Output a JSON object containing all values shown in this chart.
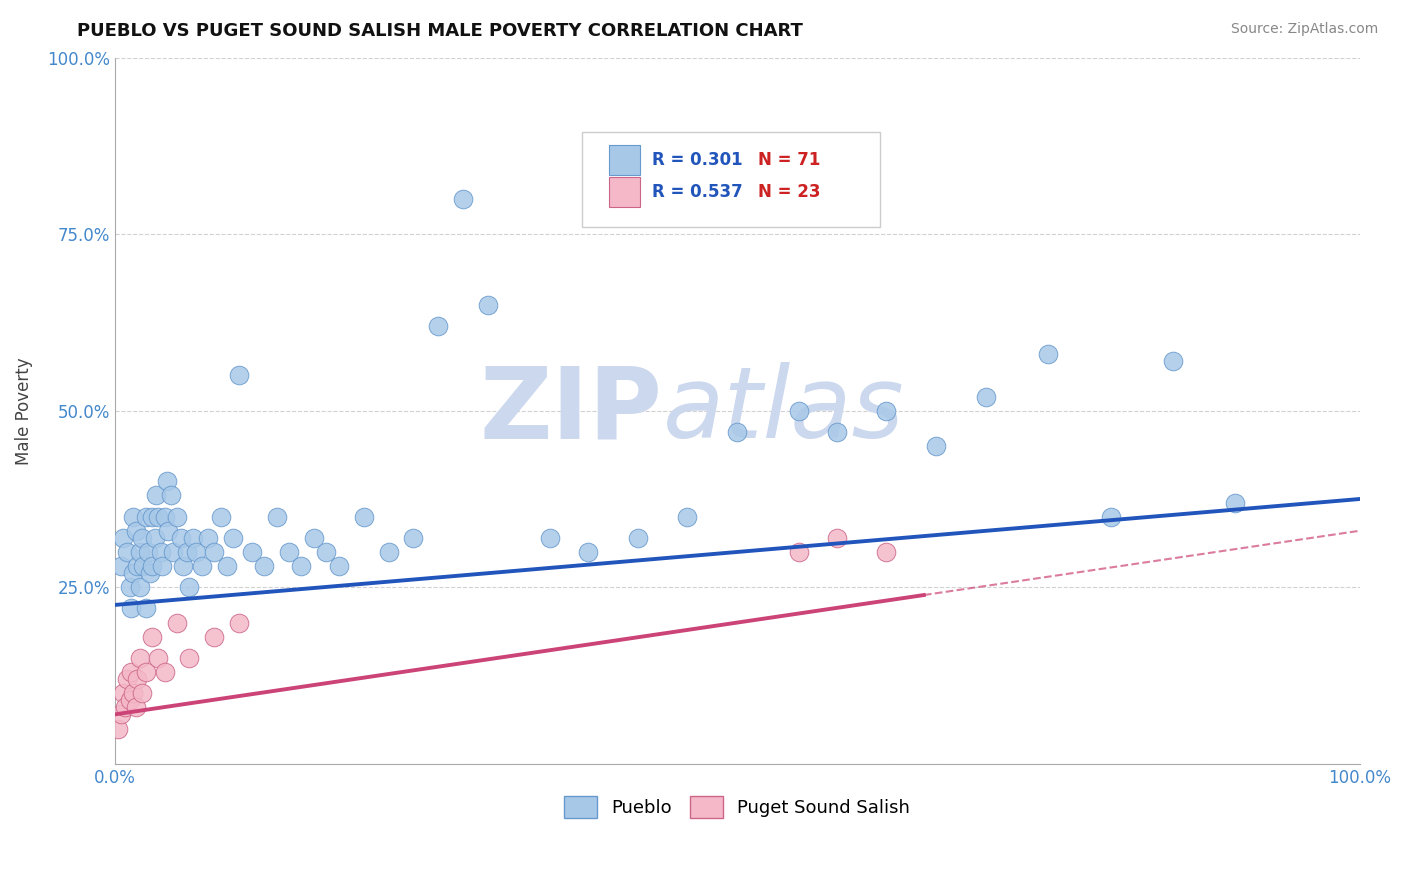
{
  "title": "PUEBLO VS PUGET SOUND SALISH MALE POVERTY CORRELATION CHART",
  "source": "Source: ZipAtlas.com",
  "ylabel": "Male Poverty",
  "xlim": [
    0.0,
    1.0
  ],
  "ylim": [
    0.0,
    1.0
  ],
  "background_color": "#ffffff",
  "pueblo_color": "#a8c8e8",
  "pueblo_edge_color": "#6699cc",
  "puget_color": "#f4b8c8",
  "puget_edge_color": "#cc6688",
  "pueblo_line_color": "#2255bb",
  "puget_line_color": "#cc4477",
  "legend_R_color": "#2255bb",
  "legend_N_color": "#cc2222",
  "watermark_color": "#ccd8ee",
  "pueblo_R": 0.301,
  "pueblo_N": 71,
  "puget_R": 0.537,
  "puget_N": 23,
  "pueblo_x": [
    0.005,
    0.007,
    0.01,
    0.012,
    0.013,
    0.015,
    0.015,
    0.017,
    0.018,
    0.02,
    0.02,
    0.022,
    0.023,
    0.025,
    0.025,
    0.027,
    0.028,
    0.03,
    0.03,
    0.032,
    0.033,
    0.035,
    0.037,
    0.038,
    0.04,
    0.042,
    0.043,
    0.045,
    0.047,
    0.05,
    0.053,
    0.055,
    0.058,
    0.06,
    0.063,
    0.065,
    0.07,
    0.075,
    0.08,
    0.085,
    0.09,
    0.095,
    0.1,
    0.11,
    0.12,
    0.13,
    0.14,
    0.15,
    0.16,
    0.17,
    0.18,
    0.2,
    0.22,
    0.24,
    0.26,
    0.28,
    0.3,
    0.35,
    0.38,
    0.42,
    0.46,
    0.5,
    0.55,
    0.58,
    0.62,
    0.66,
    0.7,
    0.75,
    0.8,
    0.85,
    0.9
  ],
  "pueblo_y": [
    0.28,
    0.32,
    0.3,
    0.25,
    0.22,
    0.35,
    0.27,
    0.33,
    0.28,
    0.3,
    0.25,
    0.32,
    0.28,
    0.35,
    0.22,
    0.3,
    0.27,
    0.35,
    0.28,
    0.32,
    0.38,
    0.35,
    0.3,
    0.28,
    0.35,
    0.4,
    0.33,
    0.38,
    0.3,
    0.35,
    0.32,
    0.28,
    0.3,
    0.25,
    0.32,
    0.3,
    0.28,
    0.32,
    0.3,
    0.35,
    0.28,
    0.32,
    0.55,
    0.3,
    0.28,
    0.35,
    0.3,
    0.28,
    0.32,
    0.3,
    0.28,
    0.35,
    0.3,
    0.32,
    0.62,
    0.8,
    0.65,
    0.32,
    0.3,
    0.32,
    0.35,
    0.47,
    0.5,
    0.47,
    0.5,
    0.45,
    0.52,
    0.58,
    0.35,
    0.57,
    0.37
  ],
  "puget_x": [
    0.003,
    0.005,
    0.007,
    0.008,
    0.01,
    0.012,
    0.013,
    0.015,
    0.017,
    0.018,
    0.02,
    0.022,
    0.025,
    0.03,
    0.035,
    0.04,
    0.05,
    0.06,
    0.08,
    0.1,
    0.55,
    0.58,
    0.62
  ],
  "puget_y": [
    0.05,
    0.07,
    0.1,
    0.08,
    0.12,
    0.09,
    0.13,
    0.1,
    0.08,
    0.12,
    0.15,
    0.1,
    0.13,
    0.18,
    0.15,
    0.13,
    0.2,
    0.15,
    0.18,
    0.2,
    0.3,
    0.32,
    0.3
  ]
}
